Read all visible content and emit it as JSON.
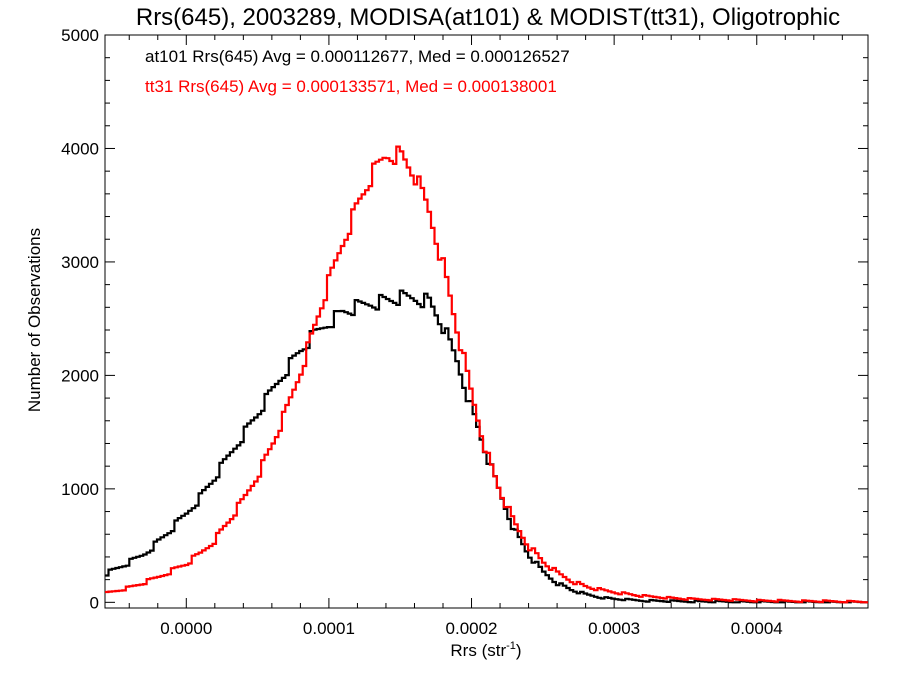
{
  "chart_data": {
    "type": "line",
    "title": "Rrs(645), 2003289, MODISA(at101) & MODIST(tt31), Oligotrophic",
    "xlabel_main": "Rrs (str",
    "xlabel_sup": "-1",
    "xlabel_end": ")",
    "ylabel": "Number of Observations",
    "xlim": [
      -5.7e-05,
      0.000478
    ],
    "ylim": [
      -50,
      5000
    ],
    "x_ticks": [
      0.0,
      0.0001,
      0.0002,
      0.0003,
      0.0004
    ],
    "x_tick_labels": [
      "0.0000",
      "0.0001",
      "0.0002",
      "0.0003",
      "0.0004"
    ],
    "y_ticks": [
      0,
      1000,
      2000,
      3000,
      4000,
      5000
    ],
    "y_tick_labels": [
      "0",
      "1000",
      "2000",
      "3000",
      "4000",
      "5000"
    ],
    "grid": false,
    "annotations": [
      {
        "text": "at101 Rrs(645) Avg = 0.000112677, Med = 0.000126527",
        "color": "#000000"
      },
      {
        "text": "tt31 Rrs(645) Avg = 0.000133571, Med = 0.000138001",
        "color": "#ff0000"
      }
    ],
    "series": [
      {
        "color": "#000000",
        "points": [
          [
            -5.7e-05,
            250
          ],
          [
            -5e-05,
            290
          ],
          [
            -4e-05,
            350
          ],
          [
            -3e-05,
            420
          ],
          [
            -2e-05,
            530
          ],
          [
            -1e-05,
            650
          ],
          [
            0.0,
            780
          ],
          [
            1e-05,
            930
          ],
          [
            2e-05,
            1100
          ],
          [
            3e-05,
            1290
          ],
          [
            4e-05,
            1480
          ],
          [
            5e-05,
            1660
          ],
          [
            6e-05,
            1860
          ],
          [
            7e-05,
            2050
          ],
          [
            8e-05,
            2220
          ],
          [
            9e-05,
            2360
          ],
          [
            0.0001,
            2470
          ],
          [
            0.00011,
            2560
          ],
          [
            0.00012,
            2600
          ],
          [
            0.00013,
            2640
          ],
          [
            0.00014,
            2660
          ],
          [
            0.00015,
            2680
          ],
          [
            0.00016,
            2680
          ],
          [
            0.00017,
            2660
          ],
          [
            0.00018,
            2430
          ],
          [
            0.00019,
            2120
          ],
          [
            0.0002,
            1710
          ],
          [
            0.00021,
            1320
          ],
          [
            0.00022,
            960
          ],
          [
            0.00023,
            640
          ],
          [
            0.00024,
            420
          ],
          [
            0.00025,
            270
          ],
          [
            0.00026,
            170
          ],
          [
            0.00027,
            110
          ],
          [
            0.00028,
            70
          ],
          [
            0.00029,
            45
          ],
          [
            0.0003,
            30
          ],
          [
            0.00032,
            15
          ],
          [
            0.00035,
            8
          ],
          [
            0.0004,
            3
          ],
          [
            0.000478,
            0
          ]
        ]
      },
      {
        "color": "#ff0000",
        "points": [
          [
            -5.7e-05,
            80
          ],
          [
            -5e-05,
            100
          ],
          [
            -4e-05,
            130
          ],
          [
            -3e-05,
            170
          ],
          [
            -2e-05,
            220
          ],
          [
            -1e-05,
            280
          ],
          [
            0.0,
            340
          ],
          [
            1e-05,
            430
          ],
          [
            2e-05,
            550
          ],
          [
            3e-05,
            720
          ],
          [
            4e-05,
            900
          ],
          [
            5e-05,
            1120
          ],
          [
            6e-05,
            1380
          ],
          [
            7e-05,
            1680
          ],
          [
            8e-05,
            2030
          ],
          [
            9e-05,
            2430
          ],
          [
            0.0001,
            2820
          ],
          [
            0.00011,
            3180
          ],
          [
            0.00012,
            3500
          ],
          [
            0.00013,
            3760
          ],
          [
            0.00014,
            3940
          ],
          [
            0.00015,
            3950
          ],
          [
            0.00016,
            3770
          ],
          [
            0.00017,
            3460
          ],
          [
            0.00018,
            2980
          ],
          [
            0.00019,
            2400
          ],
          [
            0.0002,
            1840
          ],
          [
            0.00021,
            1340
          ],
          [
            0.00022,
            980
          ],
          [
            0.00023,
            700
          ],
          [
            0.00024,
            500
          ],
          [
            0.00025,
            360
          ],
          [
            0.00026,
            260
          ],
          [
            0.00027,
            190
          ],
          [
            0.00028,
            140
          ],
          [
            0.00029,
            110
          ],
          [
            0.0003,
            90
          ],
          [
            0.00032,
            55
          ],
          [
            0.00035,
            30
          ],
          [
            0.0004,
            15
          ],
          [
            0.000478,
            5
          ]
        ]
      }
    ]
  }
}
